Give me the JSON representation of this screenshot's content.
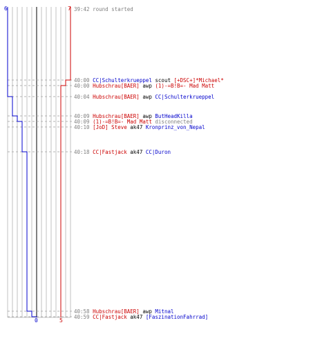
{
  "colors": {
    "team_blue": "#0000cc",
    "team_red": "#cc0000",
    "time": "#808080",
    "neutral": "#000000",
    "grid": "#c0c0c0",
    "grid_dark": "#808080",
    "dash": "#b0b0b0"
  },
  "scoreboard": {
    "blue_start": "6",
    "red_start": "7",
    "blue_end": "0",
    "red_end": "5"
  },
  "events": [
    {
      "time": "39:42",
      "parts": [
        {
          "text": "round started",
          "team": "time"
        }
      ]
    },
    {
      "time": "40:00",
      "parts": [
        {
          "text": "CC|Schulterkrueppel",
          "team": "blue"
        },
        {
          "text": " scout ",
          "team": "neutral"
        },
        {
          "text": "[+DSC+]*Michael*",
          "team": "red"
        }
      ]
    },
    {
      "time": "40:00",
      "parts": [
        {
          "text": "Hubschrau[BAER]",
          "team": "red"
        },
        {
          "text": " awp ",
          "team": "neutral"
        },
        {
          "text": "(1)-=B!B=- Mad Matt",
          "team": "red"
        }
      ]
    },
    {
      "time": "40:04",
      "parts": [
        {
          "text": "Hubschrau[BAER]",
          "team": "red"
        },
        {
          "text": " awp ",
          "team": "neutral"
        },
        {
          "text": "CC|Schulterkrueppel",
          "team": "blue"
        }
      ]
    },
    {
      "time": "40:09",
      "parts": [
        {
          "text": "Hubschrau[BAER]",
          "team": "red"
        },
        {
          "text": " awp ",
          "team": "neutral"
        },
        {
          "text": "ButHeadKilla",
          "team": "blue"
        }
      ]
    },
    {
      "time": "40:09",
      "parts": [
        {
          "text": "(1)-=B!B=- Mad Matt",
          "team": "red"
        },
        {
          "text": " disconnected",
          "team": "time"
        }
      ]
    },
    {
      "time": "40:10",
      "parts": [
        {
          "text": "[JoD] Steve",
          "team": "red"
        },
        {
          "text": " ak47 ",
          "team": "neutral"
        },
        {
          "text": "Kronprinz_von_Nepal",
          "team": "blue"
        }
      ]
    },
    {
      "time": "40:18",
      "parts": [
        {
          "text": "CC|Fastjack",
          "team": "red"
        },
        {
          "text": " ak47 ",
          "team": "neutral"
        },
        {
          "text": "CC|Duron",
          "team": "blue"
        }
      ]
    },
    {
      "time": "40:58",
      "parts": [
        {
          "text": "Hubschrau[BAER]",
          "team": "red"
        },
        {
          "text": " awp ",
          "team": "neutral"
        },
        {
          "text": "Mitnal",
          "team": "blue"
        }
      ]
    },
    {
      "time": "40:59",
      "parts": [
        {
          "text": "CC|Fastjack",
          "team": "red"
        },
        {
          "text": " ak47 ",
          "team": "neutral"
        },
        {
          "text": "[FaszinationFahrrad]",
          "team": "blue"
        }
      ]
    }
  ]
}
